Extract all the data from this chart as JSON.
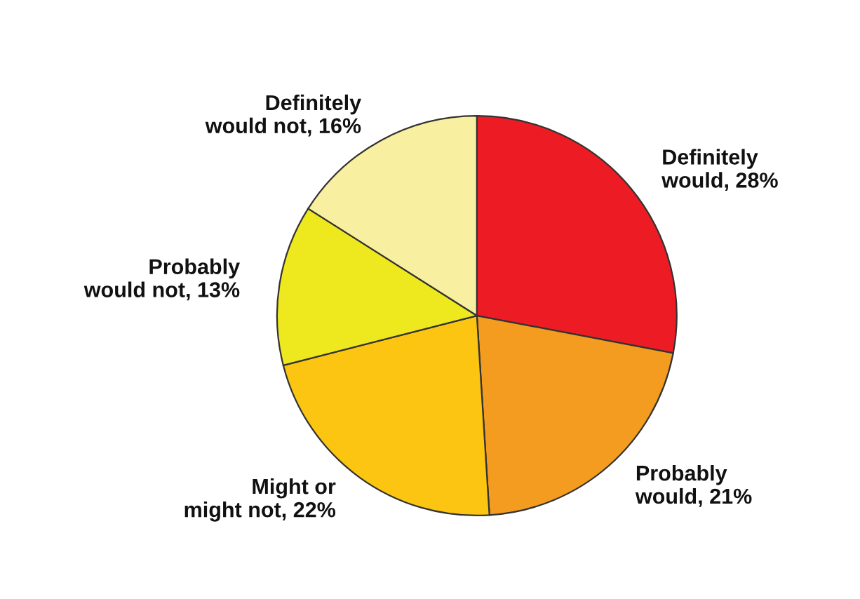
{
  "chart_data": {
    "type": "pie",
    "categories": [
      "Definitely would",
      "Probably would",
      "Might or might not",
      "Probably would not",
      "Definitely would not"
    ],
    "values": [
      28,
      21,
      22,
      13,
      16
    ],
    "value_labels": [
      "28%",
      "21%",
      "22%",
      "13%",
      "16%"
    ],
    "colors": [
      "#ed1c24",
      "#f39c1f",
      "#fbc511",
      "#eee81f",
      "#f8f0a0"
    ],
    "legend": false
  }
}
